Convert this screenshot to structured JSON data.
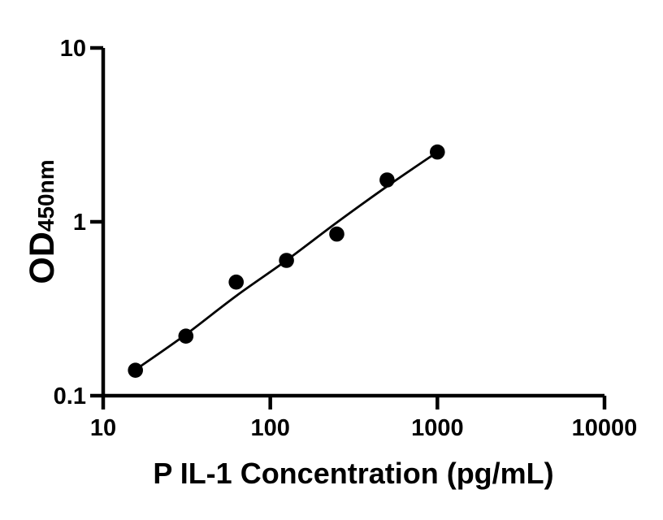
{
  "figure": {
    "background_color": "#ffffff",
    "ink_color": "#000000"
  },
  "chart_data": {
    "type": "scatter",
    "title": "",
    "xlabel": "P IL-1 Concentration (pg/mL)",
    "ylabel": "OD",
    "ylabel_subscript": "450nm",
    "x_scale": "log",
    "y_scale": "log",
    "xlim": [
      10,
      10000
    ],
    "ylim": [
      0.1,
      10
    ],
    "grid": false,
    "legend": "none",
    "marker_color": "#000000",
    "line_color": "#000000",
    "x_ticks": [
      {
        "value": 10,
        "label": "10"
      },
      {
        "value": 100,
        "label": "100"
      },
      {
        "value": 1000,
        "label": "1000"
      },
      {
        "value": 10000,
        "label": "10000"
      }
    ],
    "y_ticks": [
      {
        "value": 0.1,
        "label": "0.1"
      },
      {
        "value": 1,
        "label": "1"
      },
      {
        "value": 10,
        "label": "10"
      }
    ],
    "points": [
      {
        "x": 15.6,
        "od": 0.14
      },
      {
        "x": 31.25,
        "od": 0.22
      },
      {
        "x": 62.5,
        "od": 0.45
      },
      {
        "x": 125,
        "od": 0.6
      },
      {
        "x": 250,
        "od": 0.85
      },
      {
        "x": 500,
        "od": 1.74
      },
      {
        "x": 1000,
        "od": 2.52
      }
    ],
    "fit_curve": [
      {
        "x": 15.6,
        "od": 0.141
      },
      {
        "x": 31.25,
        "od": 0.225
      },
      {
        "x": 62.5,
        "od": 0.375
      },
      {
        "x": 125,
        "od": 0.6
      },
      {
        "x": 250,
        "od": 0.99
      },
      {
        "x": 500,
        "od": 1.6
      },
      {
        "x": 1000,
        "od": 2.52
      }
    ]
  }
}
